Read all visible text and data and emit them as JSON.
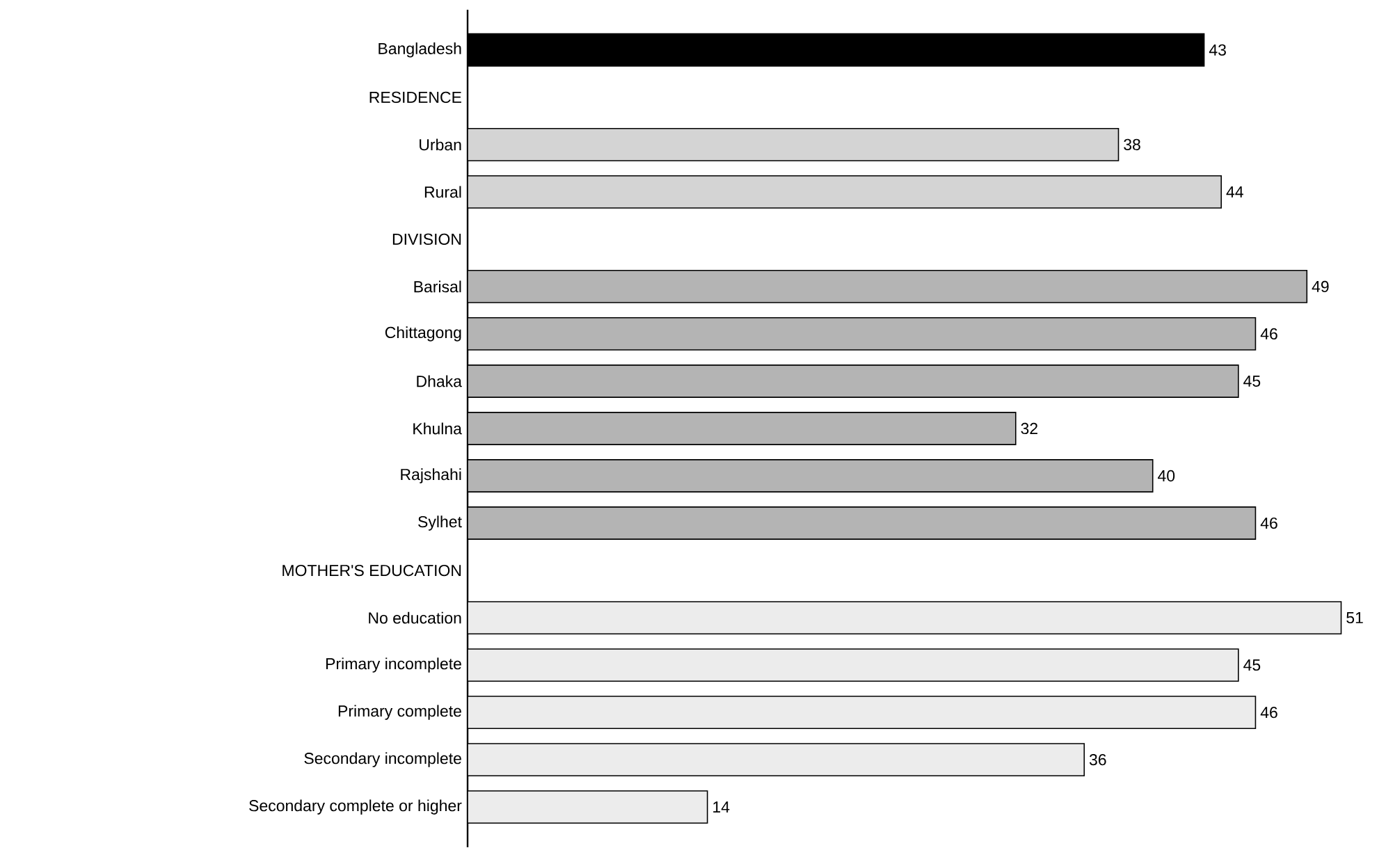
{
  "chart_data": {
    "type": "bar",
    "orientation": "horizontal",
    "categories": [
      "Bangladesh",
      "RESIDENCE",
      "Urban",
      "Rural",
      "DIVISION",
      "Barisal",
      "Chittagong",
      "Dhaka",
      "Khulna",
      "Rajshahi",
      "Sylhet",
      "MOTHER'S EDUCATION",
      "No education",
      "Primary incomplete",
      "Primary complete",
      "Secondary incomplete",
      "Secondary complete or higher"
    ],
    "values": [
      43,
      null,
      38,
      44,
      null,
      49,
      46,
      45,
      32,
      40,
      46,
      null,
      51,
      45,
      46,
      36,
      14
    ],
    "colors": [
      "#000000",
      null,
      "#d4d4d4",
      "#d4d4d4",
      null,
      "#b4b4b4",
      "#b4b4b4",
      "#b4b4b4",
      "#b4b4b4",
      "#b4b4b4",
      "#b4b4b4",
      null,
      "#ececec",
      "#ececec",
      "#ececec",
      "#ececec",
      "#ececec"
    ],
    "data_labels": true
  }
}
